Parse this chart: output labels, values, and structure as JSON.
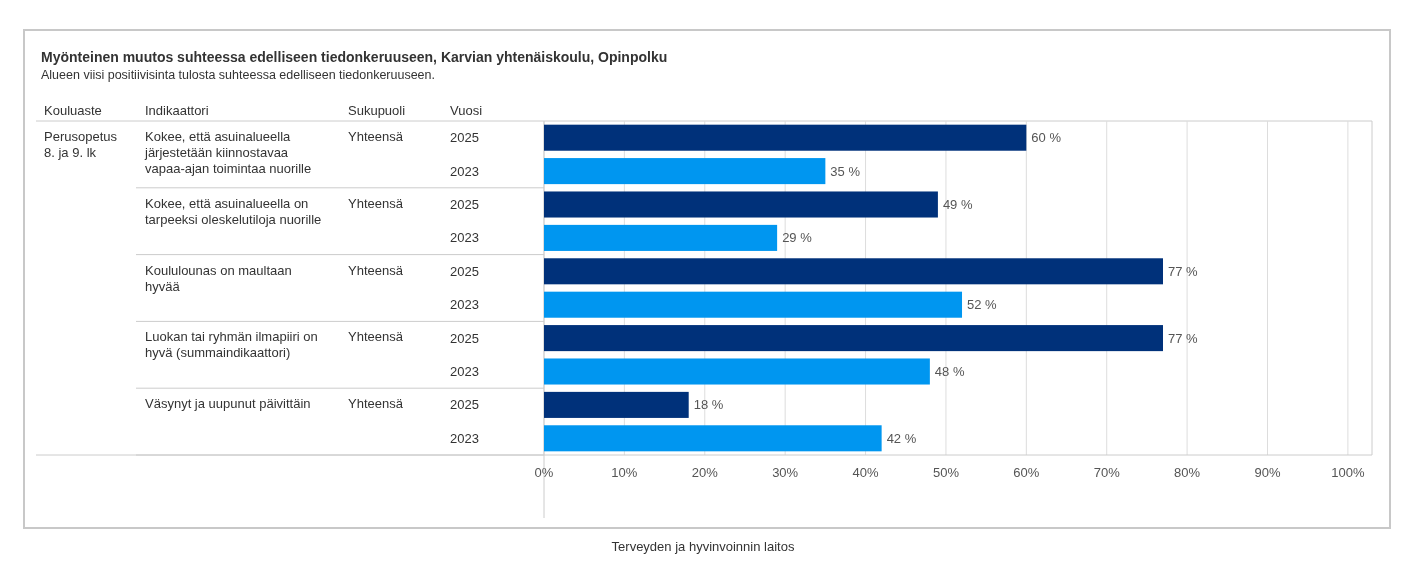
{
  "chart_data": {
    "type": "bar",
    "orientation": "horizontal",
    "title": "Myönteinen muutos suhteessa edelliseen tiedonkeruuseen, Karvian yhtenäiskoulu, Opinpolku",
    "subtitle": "Alueen viisi positiivisinta tulosta suhteessa edelliseen tiedonkeruuseen.",
    "categories": [
      "2025",
      "2023",
      "2025",
      "2023",
      "2025",
      "2023",
      "2025",
      "2023",
      "2025",
      "2023"
    ],
    "values": [
      60,
      35,
      49,
      29,
      77,
      52,
      77,
      48,
      18,
      42
    ],
    "colors": [
      "#00317a",
      "#0096f0",
      "#00317a",
      "#0096f0",
      "#00317a",
      "#0096f0",
      "#00317a",
      "#0096f0",
      "#00317a",
      "#0096f0"
    ],
    "value_labels": [
      "60 %",
      "35 %",
      "49 %",
      "29 %",
      "77 %",
      "52 %",
      "77 %",
      "48 %",
      "18 %",
      "42 %"
    ],
    "xlim": [
      0,
      103
    ],
    "xticks": [
      {
        "value": 0,
        "label": "0%"
      },
      {
        "value": 10,
        "label": "10%"
      },
      {
        "value": 20,
        "label": "20%"
      },
      {
        "value": 30,
        "label": "30%"
      },
      {
        "value": 40,
        "label": "40%"
      },
      {
        "value": 50,
        "label": "50%"
      },
      {
        "value": 60,
        "label": "60%"
      },
      {
        "value": 70,
        "label": "70%"
      },
      {
        "value": 80,
        "label": "80%"
      },
      {
        "value": 90,
        "label": "90%"
      },
      {
        "value": 100,
        "label": "100%"
      }
    ],
    "grid": "x",
    "annotations": [
      "Kouluaste",
      "Indikaattori",
      "Sukupuoli",
      "Vuosi",
      "Perusopetus 8. ja 9. lk",
      "Kokee, että asuinalueella järjestetään kiinnostavaa vapaa-ajan toimintaa nuorille",
      "Kokee, että asuinalueella on tarpeeksi oleskelutiloja nuorille",
      "Koululounas on maultaan hyvää",
      "Luokan tai ryhmän ilmapiiri on hyvä (summaindikaattori)",
      "Väsynyt ja uupunut päivittäin",
      "Yhteensä",
      "Yhteensä",
      "Yhteensä",
      "Yhteensä",
      "Yhteensä",
      "Terveyden ja hyvinvoinnin laitos"
    ]
  }
}
